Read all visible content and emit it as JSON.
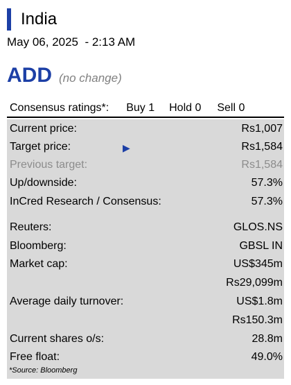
{
  "header": {
    "country": "India",
    "datetime": "May 06, 2025  - 2:13 AM"
  },
  "rating": {
    "value": "ADD",
    "change": "(no change)"
  },
  "consensus": {
    "label": "Consensus ratings*:",
    "buy": "Buy 1",
    "hold": "Hold 0",
    "sell": "Sell 0"
  },
  "metrics": {
    "current_price": {
      "label": "Current price:",
      "value": "Rs1,007"
    },
    "target_price": {
      "label": "Target price:",
      "value": "Rs1,584"
    },
    "previous_target": {
      "label": "Previous target:",
      "value": "Rs1,584"
    },
    "updownside": {
      "label": "Up/downside:",
      "value": "57.3%"
    },
    "incred_vs_consensus": {
      "label": "InCred Research / Consensus:",
      "value": "57.3%"
    },
    "reuters": {
      "label": "Reuters:",
      "value": "GLOS.NS"
    },
    "bloomberg": {
      "label": "Bloomberg:",
      "value": "GBSL IN"
    },
    "market_cap": {
      "label": "Market cap:",
      "value_usd": "US$345m",
      "value_inr": "Rs29,099m"
    },
    "avg_daily_turnover": {
      "label": "Average daily turnover:",
      "value_usd": "US$1.8m",
      "value_inr": "Rs150.3m"
    },
    "current_shares": {
      "label": "Current shares o/s:",
      "value": "28.8m"
    },
    "free_float": {
      "label": "Free float:",
      "value": "49.0%"
    }
  },
  "source": "*Source: Bloomberg",
  "colors": {
    "accent": "#1c3fa6",
    "panel": "#d9d9d9",
    "muted": "#8c8c8c"
  },
  "icons": {
    "target_arrow": "triangle-right-icon"
  }
}
